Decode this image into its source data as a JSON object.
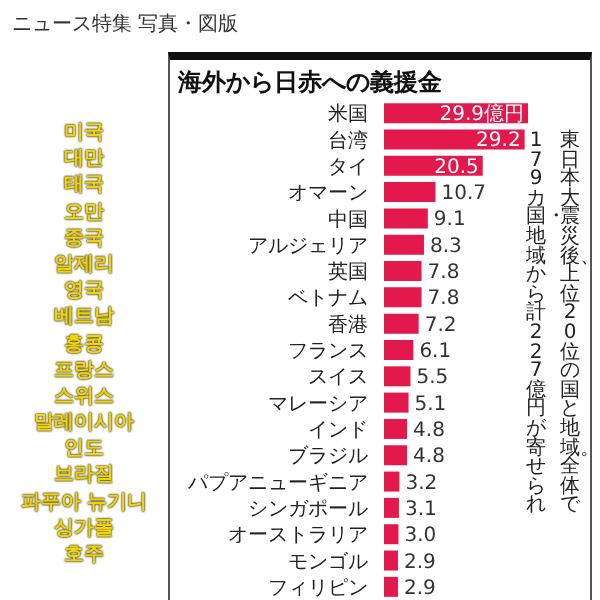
{
  "chart_data": {
    "type": "bar",
    "orientation": "horizontal",
    "title": "海外から日赤への義援金",
    "subtitle": "ニュース特集 写真・図版",
    "categories": [
      "米国",
      "台湾",
      "タイ",
      "オマーン",
      "中国",
      "アルジェリア",
      "英国",
      "ベトナム",
      "香港",
      "フランス",
      "スイス",
      "マレーシア",
      "インド",
      "ブラジル",
      "パプアニューギニア",
      "シンガポール",
      "オーストラリア",
      "モンゴル",
      "フィリピン"
    ],
    "values": [
      29.9,
      29.2,
      20.5,
      10.7,
      9.1,
      8.3,
      7.8,
      7.8,
      7.2,
      6.1,
      5.5,
      5.1,
      4.8,
      4.8,
      3.2,
      3.1,
      3.0,
      2.9,
      2.9
    ],
    "value_labels": [
      "29.9億円",
      "29.2",
      "20.5",
      "10.7",
      "9.1",
      "8.3",
      "7.8",
      "7.8",
      "7.2",
      "6.1",
      "5.5",
      "5.1",
      "4.8",
      "4.8",
      "3.2",
      "3.1",
      "3.0",
      "2.9",
      "2.9"
    ],
    "color": "#e3194d",
    "annotations": [
      "東日本大震災後、上位20位の国と地域。全体で",
      "179カ国・地域から計227億円が寄せられ",
      "미국",
      "대만",
      "태국",
      "오만",
      "중국",
      "알제리",
      "영국",
      "베트남",
      "홍콩",
      "프랑스",
      "스위스",
      "말레이시아",
      "인도",
      "브라질",
      "파푸아 뉴기니",
      "싱가폴",
      "호주"
    ]
  }
}
